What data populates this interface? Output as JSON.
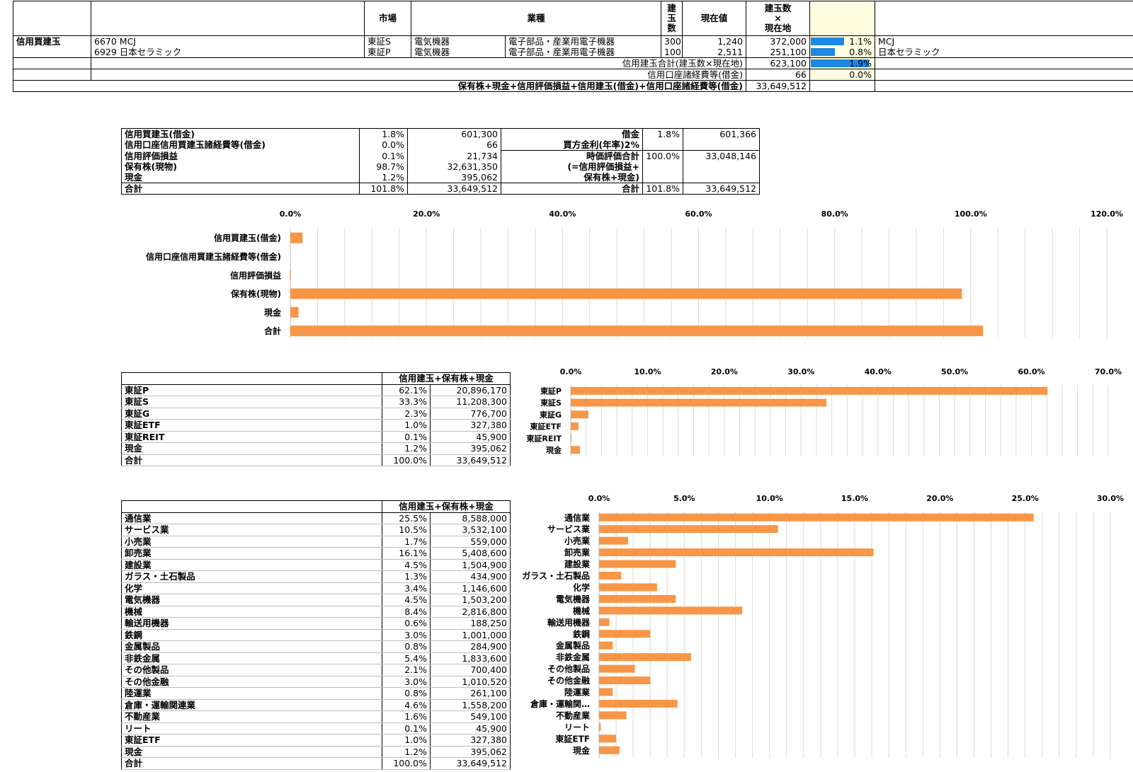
{
  "holdings": {
    "headers": {
      "market": "市場",
      "industry": "業種",
      "qty": "建\n玉\n数",
      "price": "現在値",
      "value": "建玉数\n×\n現在地"
    },
    "group_label": "信用買建玉",
    "rows": [
      {
        "code_name": "6670 MCJ",
        "market": "東証S",
        "sector": "電気機器",
        "subsector": "電子部品・産業用電子機器",
        "qty": "300",
        "price": "1,240",
        "value": "372,000",
        "pct": "1.1%",
        "pct_value": 1.1,
        "name": "MCJ"
      },
      {
        "code_name": "6929 日本セラミック",
        "market": "東証P",
        "sector": "電気機器",
        "subsector": "電子部品・産業用電子機器",
        "qty": "100",
        "price": "2,511",
        "value": "251,100",
        "pct": "0.8%",
        "pct_value": 0.8,
        "name": "日本セラミック"
      }
    ],
    "total_label": "信用建玉合計(建玉数×現在地)",
    "total_value": "623,100",
    "total_pct": "1.9%",
    "total_pct_value": 1.9,
    "fees_label": "信用口座諸経費等(借金)",
    "fees_value": "66",
    "fees_pct": "0.0%",
    "grand_label": "保有株+現金+信用評価損益+信用建玉(借金)+信用口座諸経費等(借金)",
    "grand_value": "33,649,512"
  },
  "summary": {
    "rows": [
      {
        "label": "信用買建玉(借金)",
        "pct": "1.8%",
        "value": "601,300"
      },
      {
        "label": "信用口座信用買建玉諸経費等(借金)",
        "pct": "0.0%",
        "value": "66"
      },
      {
        "label": "信用評価損益",
        "pct": "0.1%",
        "value": "21,734"
      },
      {
        "label": "保有株(現物)",
        "pct": "98.7%",
        "value": "32,631,350"
      },
      {
        "label": "現金",
        "pct": "1.2%",
        "value": "395,062"
      },
      {
        "label": "合計",
        "pct": "101.8%",
        "value": "33,649,512"
      }
    ],
    "right": {
      "debt_label": "借金",
      "debt_pct": "1.8%",
      "debt_value": "601,366",
      "interest_label": "買方金利(年率)2%",
      "mv_label_1": "時価評価合計",
      "mv_pct": "100.0%",
      "mv_value": "33,048,146",
      "mv_label_2": "(=信用評価損益+",
      "mv_label_3": "保有株+現金)",
      "total_label": "合計",
      "total_pct": "101.8%",
      "total_value": "33,649,512"
    }
  },
  "market_table": {
    "header": "信用建玉+保有株+現金",
    "rows": [
      {
        "label": "東証P",
        "pct": "62.1%",
        "value": "20,896,170"
      },
      {
        "label": "東証S",
        "pct": "33.3%",
        "value": "11,208,300"
      },
      {
        "label": "東証G",
        "pct": "2.3%",
        "value": "776,700"
      },
      {
        "label": "東証ETF",
        "pct": "1.0%",
        "value": "327,380"
      },
      {
        "label": "東証REIT",
        "pct": "0.1%",
        "value": "45,900"
      },
      {
        "label": "現金",
        "pct": "1.2%",
        "value": "395,062"
      }
    ],
    "total": {
      "label": "合計",
      "pct": "100.0%",
      "value": "33,649,512"
    }
  },
  "industry_table": {
    "header": "信用建玉+保有株+現金",
    "rows": [
      {
        "label": "通信業",
        "pct": "25.5%",
        "value": "8,588,000"
      },
      {
        "label": "サービス業",
        "pct": "10.5%",
        "value": "3,532,100"
      },
      {
        "label": "小売業",
        "pct": "1.7%",
        "value": "559,000"
      },
      {
        "label": "卸売業",
        "pct": "16.1%",
        "value": "5,408,600"
      },
      {
        "label": "建設業",
        "pct": "4.5%",
        "value": "1,504,900"
      },
      {
        "label": "ガラス・土石製品",
        "pct": "1.3%",
        "value": "434,900"
      },
      {
        "label": "化学",
        "pct": "3.4%",
        "value": "1,146,600"
      },
      {
        "label": "電気機器",
        "pct": "4.5%",
        "value": "1,503,200"
      },
      {
        "label": "機械",
        "pct": "8.4%",
        "value": "2,816,800"
      },
      {
        "label": "輸送用機器",
        "pct": "0.6%",
        "value": "188,250"
      },
      {
        "label": "鉄鋼",
        "pct": "3.0%",
        "value": "1,001,000"
      },
      {
        "label": "金属製品",
        "pct": "0.8%",
        "value": "284,900"
      },
      {
        "label": "非鉄金属",
        "pct": "5.4%",
        "value": "1,833,600"
      },
      {
        "label": "その他製品",
        "pct": "2.1%",
        "value": "700,400"
      },
      {
        "label": "その他金融",
        "pct": "3.0%",
        "value": "1,010,520"
      },
      {
        "label": "陸運業",
        "pct": "0.8%",
        "value": "261,100"
      },
      {
        "label": "倉庫・運輸関連業",
        "pct": "4.6%",
        "value": "1,558,200"
      },
      {
        "label": "不動産業",
        "pct": "1.6%",
        "value": "549,100"
      },
      {
        "label": "リート",
        "pct": "0.1%",
        "value": "45,900"
      },
      {
        "label": "東証ETF",
        "pct": "1.0%",
        "value": "327,380"
      },
      {
        "label": "現金",
        "pct": "1.2%",
        "value": "395,062"
      }
    ],
    "total": {
      "label": "合計",
      "pct": "100.0%",
      "value": "33,649,512"
    }
  },
  "colors": {
    "bar": "#f79646",
    "databar": "#1e88e5",
    "highlight": "#fefde0",
    "grid": "#d9d9d9"
  },
  "chart_data": [
    {
      "type": "bar",
      "orientation": "horizontal",
      "categories": [
        "信用買建玉(借金)",
        "信用口座信用買建玉諸経費等(借金)",
        "信用評価損益",
        "保有株(現物)",
        "現金",
        "合計"
      ],
      "values": [
        1.8,
        0.0,
        0.1,
        98.7,
        1.2,
        101.8
      ],
      "xlim": [
        0,
        120
      ],
      "xticks": [
        "0.0%",
        "20.0%",
        "40.0%",
        "60.0%",
        "80.0%",
        "100.0%",
        "120.0%"
      ],
      "grid": true,
      "axis_position": "top"
    },
    {
      "type": "bar",
      "orientation": "horizontal",
      "categories": [
        "東証P",
        "東証S",
        "東証G",
        "東証ETF",
        "東証REIT",
        "現金"
      ],
      "values": [
        62.1,
        33.3,
        2.3,
        1.0,
        0.1,
        1.2
      ],
      "xlim": [
        0,
        70
      ],
      "xticks": [
        "0.0%",
        "10.0%",
        "20.0%",
        "30.0%",
        "40.0%",
        "50.0%",
        "60.0%",
        "70.0%"
      ],
      "grid": true,
      "axis_position": "top"
    },
    {
      "type": "bar",
      "orientation": "horizontal",
      "categories": [
        "通信業",
        "サービス業",
        "小売業",
        "卸売業",
        "建設業",
        "ガラス・土石製品",
        "化学",
        "電気機器",
        "機械",
        "輸送用機器",
        "鉄鋼",
        "金属製品",
        "非鉄金属",
        "その他製品",
        "その他金融",
        "陸運業",
        "倉庫・運輸関…",
        "不動産業",
        "リート",
        "東証ETF",
        "現金"
      ],
      "values": [
        25.5,
        10.5,
        1.7,
        16.1,
        4.5,
        1.3,
        3.4,
        4.5,
        8.4,
        0.6,
        3.0,
        0.8,
        5.4,
        2.1,
        3.0,
        0.8,
        4.6,
        1.6,
        0.1,
        1.0,
        1.2
      ],
      "xlim": [
        0,
        30
      ],
      "xticks": [
        "0.0%",
        "5.0%",
        "10.0%",
        "15.0%",
        "20.0%",
        "25.0%",
        "30.0%"
      ],
      "grid": true,
      "axis_position": "top"
    }
  ]
}
